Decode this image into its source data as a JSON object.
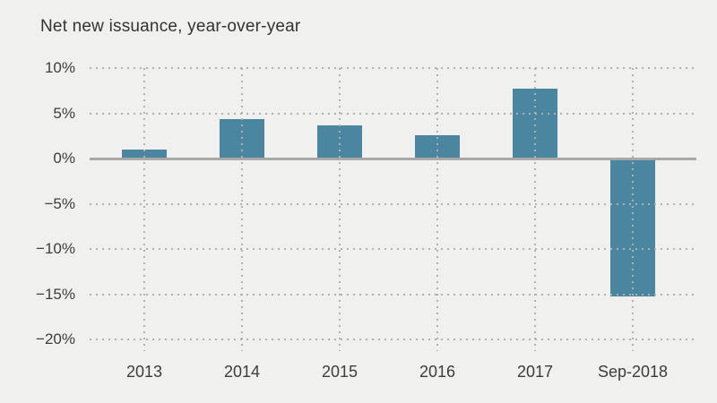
{
  "chart_data": {
    "type": "bar",
    "title": "Net new issuance, year-over-year",
    "categories": [
      "2013",
      "2014",
      "2015",
      "2016",
      "2017",
      "Sep-2018"
    ],
    "values": [
      1.0,
      4.4,
      3.7,
      2.6,
      7.7,
      -15.2
    ],
    "xlabel": "",
    "ylabel": "",
    "ylim": [
      -20,
      10
    ],
    "yticks": [
      10,
      5,
      0,
      -5,
      -10,
      -15,
      -20
    ],
    "ytick_labels": [
      "10%",
      "5%",
      "0%",
      "−5%",
      "−10%",
      "−15%",
      "−20%"
    ],
    "grid": "dotted",
    "legend": "none",
    "colors": {
      "bar": "#4a86a0",
      "background": "#f0f0ee",
      "zero_line": "#a8a8a8",
      "gridline": "#b0b0b0",
      "text": "#3d3d3d"
    }
  }
}
